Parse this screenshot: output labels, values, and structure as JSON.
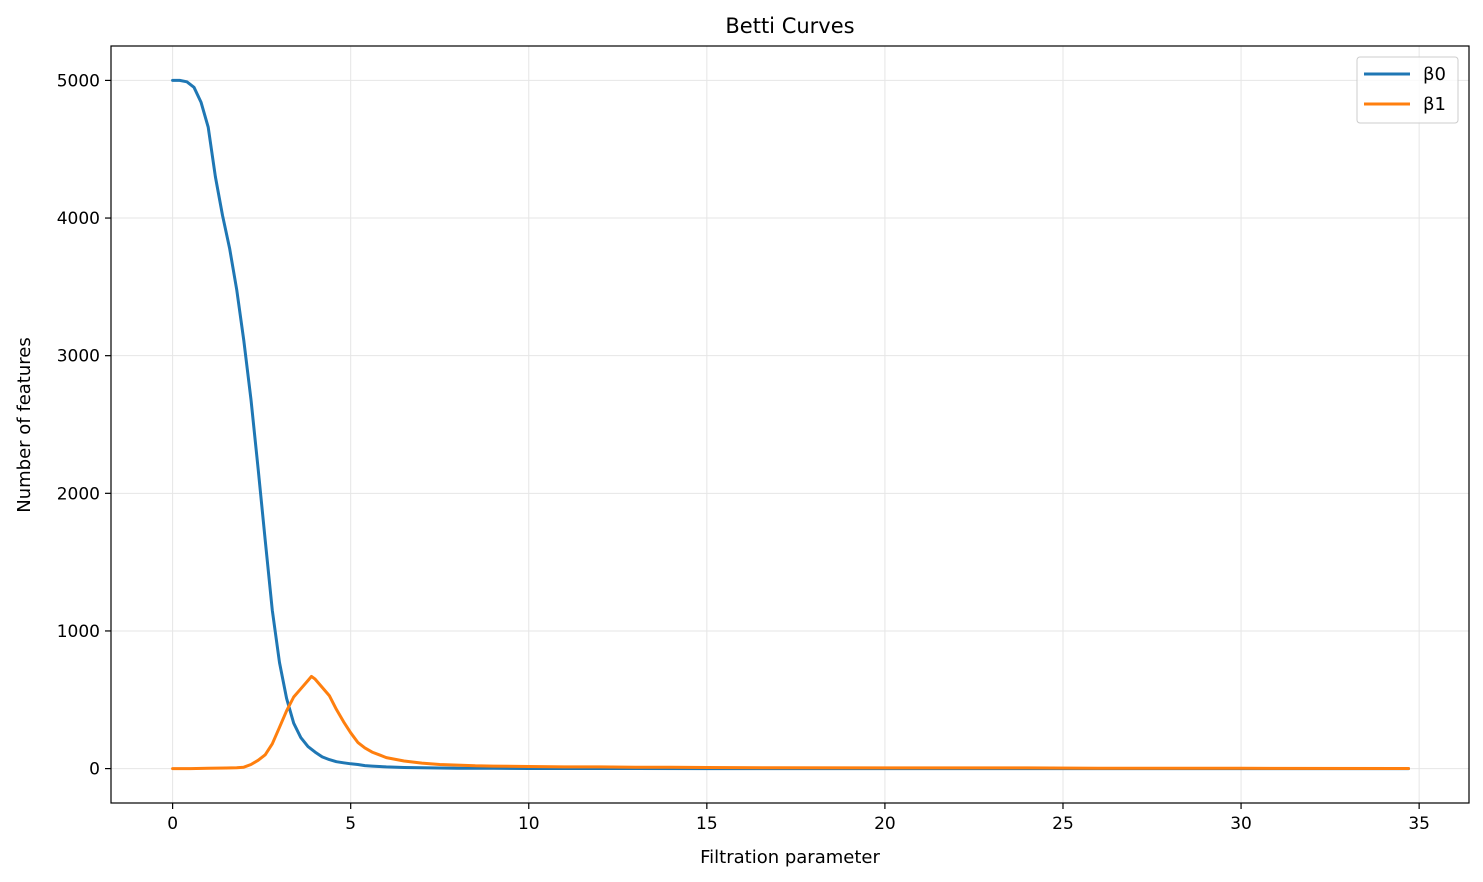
{
  "chart_data": {
    "type": "line",
    "title": "Betti Curves",
    "xlabel": "Filtration parameter",
    "ylabel": "Number of features",
    "xlim": [
      -1.73,
      36.4
    ],
    "ylim": [
      -250,
      5250
    ],
    "xticks": [
      0,
      5,
      10,
      15,
      20,
      25,
      30,
      35
    ],
    "yticks": [
      0,
      1000,
      2000,
      3000,
      4000,
      5000
    ],
    "grid": true,
    "legend": "top-right",
    "colors": {
      "beta0": "#1f77b4",
      "beta1": "#ff7f0e",
      "grid": "#e6e6e6",
      "frame": "#000000"
    },
    "series": [
      {
        "name": "β0",
        "color": "#1f77b4",
        "x": [
          0.0,
          0.2,
          0.4,
          0.6,
          0.8,
          1.0,
          1.2,
          1.4,
          1.6,
          1.8,
          2.0,
          2.2,
          2.4,
          2.6,
          2.8,
          3.0,
          3.2,
          3.4,
          3.6,
          3.8,
          4.0,
          4.2,
          4.4,
          4.6,
          4.8,
          5.0,
          5.2,
          5.4,
          5.6,
          5.8,
          6.0,
          6.5,
          7.0,
          7.5,
          8.0,
          9.0,
          10.0,
          12.0,
          15.0,
          20.0,
          25.0,
          30.0,
          34.7
        ],
        "y": [
          5000,
          5000,
          4990,
          4950,
          4840,
          4660,
          4300,
          4020,
          3780,
          3480,
          3110,
          2680,
          2180,
          1660,
          1150,
          770,
          510,
          330,
          225,
          160,
          120,
          85,
          65,
          50,
          42,
          35,
          30,
          22,
          18,
          15,
          12,
          8,
          6,
          4,
          3,
          2,
          1,
          1,
          0,
          0,
          0,
          0,
          0
        ]
      },
      {
        "name": "β1",
        "color": "#ff7f0e",
        "x": [
          0.0,
          0.5,
          1.0,
          1.5,
          1.8,
          2.0,
          2.2,
          2.4,
          2.6,
          2.8,
          3.0,
          3.2,
          3.4,
          3.6,
          3.8,
          3.9,
          4.0,
          4.2,
          4.4,
          4.6,
          4.8,
          5.0,
          5.2,
          5.4,
          5.6,
          5.8,
          6.0,
          6.5,
          7.0,
          7.5,
          8.0,
          8.5,
          9.0,
          10.0,
          11.0,
          12.0,
          13.0,
          14.0,
          15.0,
          17.0,
          20.0,
          24.0,
          26.0,
          28.0,
          30.0,
          34.7
        ],
        "y": [
          0,
          0,
          2,
          4,
          6,
          10,
          30,
          60,
          100,
          180,
          300,
          420,
          520,
          580,
          640,
          670,
          650,
          590,
          530,
          430,
          340,
          260,
          190,
          150,
          120,
          100,
          80,
          55,
          40,
          30,
          25,
          20,
          18,
          15,
          12,
          12,
          10,
          10,
          8,
          6,
          5,
          5,
          3,
          2,
          2,
          1
        ]
      }
    ]
  }
}
